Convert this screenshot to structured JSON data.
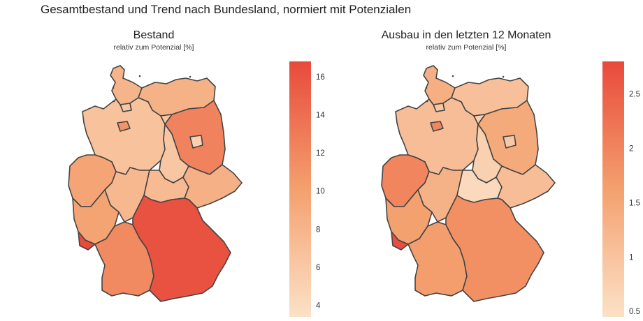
{
  "figure": {
    "title": "Gesamtbestand und Trend nach Bundesland, normiert mit Potenzialen"
  },
  "colors": {
    "scale_low": "#fbe1c7",
    "scale_mid": "#f4a06e",
    "scale_high": "#e84a3c",
    "border": "#444444",
    "background": "#ffffff"
  },
  "chart_data": [
    {
      "type": "choropleth",
      "title": "Bestand",
      "subtitle": "relativ zum Potenzial [%]",
      "colorbar": {
        "min": 3.4,
        "max": 16.8,
        "ticks": [
          "4",
          "6",
          "8",
          "10",
          "12",
          "14",
          "16"
        ],
        "tick_values": [
          4,
          6,
          8,
          10,
          12,
          14,
          16
        ]
      },
      "regions": [
        {
          "id": "schleswig-holstein",
          "value": 8.0
        },
        {
          "id": "hamburg",
          "value": 6.0
        },
        {
          "id": "mecklenburg-vorpommern",
          "value": 8.2
        },
        {
          "id": "niedersachsen",
          "value": 6.6
        },
        {
          "id": "bremen",
          "value": 11.0
        },
        {
          "id": "brandenburg",
          "value": 12.4
        },
        {
          "id": "berlin",
          "value": 5.0
        },
        {
          "id": "sachsen-anhalt",
          "value": 6.2
        },
        {
          "id": "nordrhein-westfalen",
          "value": 9.6
        },
        {
          "id": "hessen",
          "value": 7.6
        },
        {
          "id": "thueringen",
          "value": 7.4
        },
        {
          "id": "sachsen",
          "value": 8.4
        },
        {
          "id": "rheinland-pfalz",
          "value": 9.8
        },
        {
          "id": "saarland",
          "value": 16.8
        },
        {
          "id": "baden-wuerttemberg",
          "value": 11.8
        },
        {
          "id": "bayern",
          "value": 16.2
        }
      ]
    },
    {
      "type": "choropleth",
      "title": "Ausbau in den letzten 12 Monaten",
      "subtitle": "relativ zum Potenzial [%]",
      "colorbar": {
        "min": 0.45,
        "max": 2.8,
        "ticks": [
          "0.5",
          "1",
          "1.5",
          "2",
          "2.5"
        ],
        "tick_values": [
          0.5,
          1,
          1.5,
          2,
          2.5
        ]
      },
      "regions": [
        {
          "id": "schleswig-holstein",
          "value": 1.35
        },
        {
          "id": "hamburg",
          "value": 0.9
        },
        {
          "id": "mecklenburg-vorpommern",
          "value": 1.05
        },
        {
          "id": "niedersachsen",
          "value": 1.1
        },
        {
          "id": "bremen",
          "value": 2.0
        },
        {
          "id": "brandenburg",
          "value": 1.45
        },
        {
          "id": "berlin",
          "value": 0.9
        },
        {
          "id": "sachsen-anhalt",
          "value": 0.75
        },
        {
          "id": "nordrhein-westfalen",
          "value": 2.0
        },
        {
          "id": "hessen",
          "value": 1.3
        },
        {
          "id": "thueringen",
          "value": 0.6
        },
        {
          "id": "sachsen",
          "value": 1.1
        },
        {
          "id": "rheinland-pfalz",
          "value": 1.6
        },
        {
          "id": "saarland",
          "value": 2.75
        },
        {
          "id": "baden-wuerttemberg",
          "value": 1.65
        },
        {
          "id": "bayern",
          "value": 1.85
        }
      ]
    }
  ]
}
